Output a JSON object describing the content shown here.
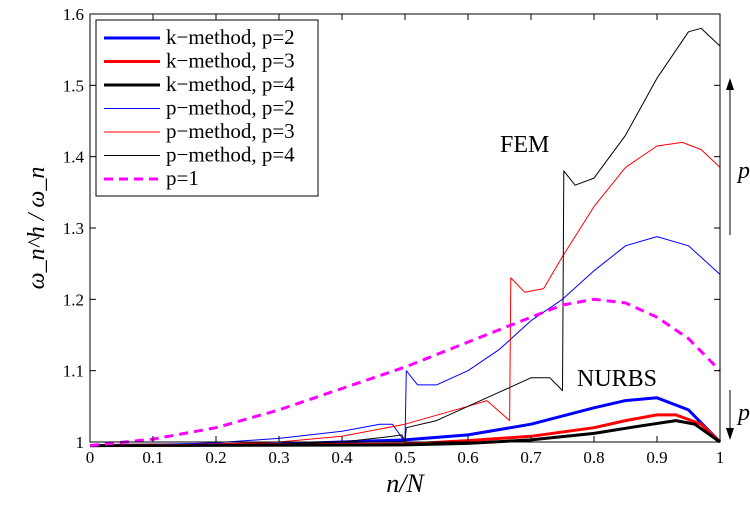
{
  "chart_data": {
    "type": "line",
    "xlabel": "n/N",
    "ylabel": "ω_n^h / ω_n",
    "xlim": [
      0,
      1
    ],
    "ylim": [
      1,
      1.6
    ],
    "xticks": [
      "0",
      "0.1",
      "0.2",
      "0.3",
      "0.4",
      "0.5",
      "0.6",
      "0.7",
      "0.8",
      "0.9",
      "1"
    ],
    "yticks": [
      "1",
      "1.1",
      "1.2",
      "1.3",
      "1.4",
      "1.5",
      "1.6"
    ],
    "legend_position": "top-left",
    "grid": false,
    "annotations": [
      {
        "text": "FEM",
        "x": 0.67,
        "y": 1.43
      },
      {
        "text": "NURBS",
        "x": 0.77,
        "y": 1.085
      }
    ],
    "side_labels": [
      {
        "text": "p",
        "arrow": "up"
      },
      {
        "text": "p",
        "arrow": "down"
      }
    ],
    "series": [
      {
        "name": "k−method, p=2",
        "color": "#0000ff",
        "width": 3,
        "dash": false,
        "points": [
          [
            0,
            0.995
          ],
          [
            0.3,
            0.997
          ],
          [
            0.5,
            1.003
          ],
          [
            0.6,
            1.01
          ],
          [
            0.7,
            1.025
          ],
          [
            0.8,
            1.048
          ],
          [
            0.85,
            1.058
          ],
          [
            0.9,
            1.062
          ],
          [
            0.95,
            1.045
          ],
          [
            1.0,
            1.0
          ]
        ]
      },
      {
        "name": "k−method, p=3",
        "color": "#ff0000",
        "width": 3,
        "dash": false,
        "points": [
          [
            0,
            0.995
          ],
          [
            0.5,
            0.997
          ],
          [
            0.6,
            1.002
          ],
          [
            0.7,
            1.008
          ],
          [
            0.8,
            1.02
          ],
          [
            0.85,
            1.03
          ],
          [
            0.9,
            1.038
          ],
          [
            0.93,
            1.038
          ],
          [
            0.97,
            1.025
          ],
          [
            1.0,
            1.0
          ]
        ]
      },
      {
        "name": "k−method, p=4",
        "color": "#000000",
        "width": 3,
        "dash": false,
        "points": [
          [
            0,
            0.995
          ],
          [
            0.5,
            0.996
          ],
          [
            0.6,
            0.998
          ],
          [
            0.7,
            1.003
          ],
          [
            0.8,
            1.012
          ],
          [
            0.87,
            1.022
          ],
          [
            0.93,
            1.03
          ],
          [
            0.96,
            1.025
          ],
          [
            1.0,
            1.0
          ]
        ]
      },
      {
        "name": "p−method, p=2",
        "color": "#0000ff",
        "width": 1,
        "dash": false,
        "points": [
          [
            0,
            0.995
          ],
          [
            0.1,
            0.996
          ],
          [
            0.2,
            0.999
          ],
          [
            0.3,
            1.005
          ],
          [
            0.4,
            1.015
          ],
          [
            0.46,
            1.025
          ],
          [
            0.48,
            1.025
          ],
          [
            0.5,
            1.0
          ],
          [
            0.502,
            1.1
          ],
          [
            0.52,
            1.08
          ],
          [
            0.55,
            1.08
          ],
          [
            0.6,
            1.1
          ],
          [
            0.65,
            1.13
          ],
          [
            0.7,
            1.17
          ],
          [
            0.75,
            1.2
          ],
          [
            0.8,
            1.24
          ],
          [
            0.85,
            1.275
          ],
          [
            0.9,
            1.288
          ],
          [
            0.95,
            1.275
          ],
          [
            1.0,
            1.235
          ]
        ]
      },
      {
        "name": "p−method, p=3",
        "color": "#ff0000",
        "width": 1,
        "dash": false,
        "points": [
          [
            0,
            0.995
          ],
          [
            0.2,
            0.997
          ],
          [
            0.3,
            1.0
          ],
          [
            0.4,
            1.008
          ],
          [
            0.5,
            1.025
          ],
          [
            0.6,
            1.05
          ],
          [
            0.63,
            1.058
          ],
          [
            0.666,
            1.03
          ],
          [
            0.668,
            1.23
          ],
          [
            0.69,
            1.21
          ],
          [
            0.72,
            1.215
          ],
          [
            0.75,
            1.26
          ],
          [
            0.8,
            1.33
          ],
          [
            0.85,
            1.385
          ],
          [
            0.9,
            1.415
          ],
          [
            0.94,
            1.42
          ],
          [
            0.97,
            1.41
          ],
          [
            1.0,
            1.385
          ]
        ]
      },
      {
        "name": "p−method, p=4",
        "color": "#000000",
        "width": 1,
        "dash": false,
        "points": [
          [
            0,
            0.995
          ],
          [
            0.3,
            0.997
          ],
          [
            0.4,
            1.0
          ],
          [
            0.48,
            1.008
          ],
          [
            0.495,
            1.01
          ],
          [
            0.5,
            1.0
          ],
          [
            0.502,
            1.02
          ],
          [
            0.55,
            1.03
          ],
          [
            0.6,
            1.05
          ],
          [
            0.65,
            1.07
          ],
          [
            0.7,
            1.09
          ],
          [
            0.73,
            1.09
          ],
          [
            0.75,
            1.072
          ],
          [
            0.752,
            1.38
          ],
          [
            0.77,
            1.36
          ],
          [
            0.8,
            1.37
          ],
          [
            0.85,
            1.43
          ],
          [
            0.9,
            1.51
          ],
          [
            0.95,
            1.575
          ],
          [
            0.97,
            1.58
          ],
          [
            1.0,
            1.555
          ]
        ]
      },
      {
        "name": "p=1",
        "color": "#ff00ff",
        "width": 3,
        "dash": true,
        "points": [
          [
            0,
            0.995
          ],
          [
            0.1,
            1.004
          ],
          [
            0.2,
            1.02
          ],
          [
            0.3,
            1.045
          ],
          [
            0.4,
            1.075
          ],
          [
            0.5,
            1.105
          ],
          [
            0.6,
            1.14
          ],
          [
            0.7,
            1.175
          ],
          [
            0.75,
            1.192
          ],
          [
            0.8,
            1.2
          ],
          [
            0.85,
            1.195
          ],
          [
            0.9,
            1.175
          ],
          [
            0.95,
            1.145
          ],
          [
            1.0,
            1.1
          ]
        ]
      }
    ]
  }
}
